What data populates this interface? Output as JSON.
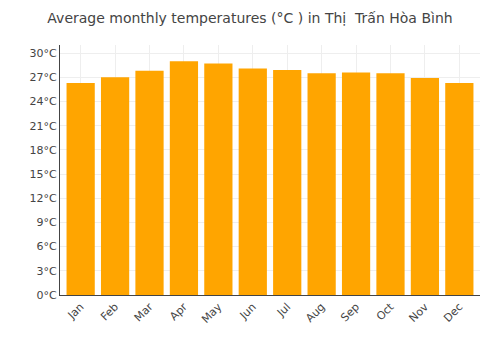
{
  "chart_data": {
    "type": "bar",
    "title": "Average monthly temperatures (°C ) in Thị  Trấn Hòa Bình",
    "categories": [
      "Jan",
      "Feb",
      "Mar",
      "Apr",
      "May",
      "Jun",
      "Jul",
      "Aug",
      "Sep",
      "Oct",
      "Nov",
      "Dec"
    ],
    "values": [
      26.3,
      27.0,
      27.8,
      29.0,
      28.7,
      28.1,
      27.9,
      27.5,
      27.6,
      27.5,
      26.9,
      26.3
    ],
    "color": "#FFA500",
    "ylim": [
      0,
      31
    ],
    "yticks": [
      {
        "value": 0,
        "label": "0°C"
      },
      {
        "value": 3,
        "label": "3°C"
      },
      {
        "value": 6,
        "label": "6°C"
      },
      {
        "value": 9,
        "label": "9°C"
      },
      {
        "value": 12,
        "label": "12°C"
      },
      {
        "value": 15,
        "label": "15°C"
      },
      {
        "value": 18,
        "label": "18°C"
      },
      {
        "value": 21,
        "label": "21°C"
      },
      {
        "value": 24,
        "label": "24°C"
      },
      {
        "value": 27,
        "label": "27°C"
      },
      {
        "value": 30,
        "label": "30°C"
      }
    ],
    "grid": true
  }
}
